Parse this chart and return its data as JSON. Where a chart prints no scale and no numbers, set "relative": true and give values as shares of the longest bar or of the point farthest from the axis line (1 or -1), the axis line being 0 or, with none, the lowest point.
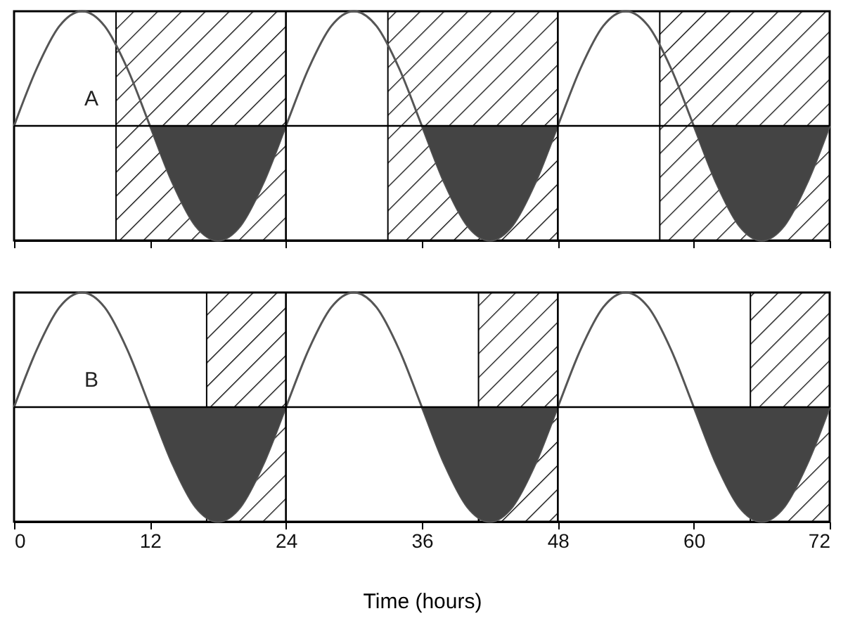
{
  "chart_data": [
    {
      "type": "line",
      "relative": true,
      "annotations": [
        "A"
      ],
      "xlim": [
        0,
        72
      ],
      "xticks": [
        0,
        12,
        24,
        36,
        48,
        60,
        72
      ],
      "tick_labels": false,
      "grid": false,
      "x": [
        0,
        2,
        4,
        6,
        8,
        10,
        12,
        14,
        16,
        18,
        20,
        22,
        24,
        26,
        28,
        30,
        32,
        34,
        36,
        38,
        40,
        42,
        44,
        46,
        48,
        50,
        52,
        54,
        56,
        58,
        60,
        62,
        64,
        66,
        68,
        70,
        72
      ],
      "series": [
        {
          "color": "#555555",
          "values": [
            0,
            0.5,
            0.87,
            1,
            0.87,
            0.5,
            0,
            -0.5,
            -0.87,
            -1,
            -0.87,
            -0.5,
            0,
            0.5,
            0.87,
            1,
            0.87,
            0.5,
            0,
            -0.5,
            -0.87,
            -1,
            -0.87,
            -0.5,
            0,
            0.5,
            0.87,
            1,
            0.87,
            0.5,
            0,
            -0.5,
            -0.87,
            -1,
            -0.87,
            -0.5,
            0
          ]
        },
        {
          "type": "area",
          "color": "#444444",
          "x": [
            12,
            14,
            16,
            18,
            20,
            22,
            24
          ],
          "values": [
            0,
            -0.5,
            -0.87,
            -1,
            -0.87,
            -0.5,
            0
          ]
        },
        {
          "type": "area",
          "color": "#444444",
          "x": [
            36,
            38,
            40,
            42,
            44,
            46,
            48
          ],
          "values": [
            0,
            -0.5,
            -0.87,
            -1,
            -0.87,
            -0.5,
            0
          ]
        },
        {
          "type": "area",
          "color": "#444444",
          "x": [
            60,
            62,
            64,
            66,
            68,
            70,
            72
          ],
          "values": [
            0,
            -0.5,
            -0.87,
            -1,
            -0.87,
            -0.5,
            0
          ]
        }
      ],
      "bands": [
        {
          "axis": "x",
          "from": 9,
          "to": 24,
          "color": "#000000"
        },
        {
          "axis": "x",
          "from": 33,
          "to": 48,
          "color": "#000000"
        },
        {
          "axis": "x",
          "from": 57,
          "to": 72,
          "color": "#000000"
        }
      ],
      "ref_lines": [
        {
          "axis": "y",
          "value": 0
        },
        {
          "axis": "x",
          "value": 24
        },
        {
          "axis": "x",
          "value": 48
        }
      ]
    },
    {
      "type": "line",
      "relative": true,
      "annotations": [
        "B"
      ],
      "xlabel": "Time (hours)",
      "xlim": [
        0,
        72
      ],
      "xticks": [
        0,
        12,
        24,
        36,
        48,
        60,
        72
      ],
      "tick_labels": "x",
      "grid": false,
      "x": [
        0,
        2,
        4,
        6,
        8,
        10,
        12,
        14,
        16,
        18,
        20,
        22,
        24,
        26,
        28,
        30,
        32,
        34,
        36,
        38,
        40,
        42,
        44,
        46,
        48,
        50,
        52,
        54,
        56,
        58,
        60,
        62,
        64,
        66,
        68,
        70,
        72
      ],
      "series": [
        {
          "color": "#555555",
          "values": [
            0,
            0.5,
            0.87,
            1,
            0.87,
            0.5,
            0,
            -0.5,
            -0.87,
            -1,
            -0.87,
            -0.5,
            0,
            0.5,
            0.87,
            1,
            0.87,
            0.5,
            0,
            -0.5,
            -0.87,
            -1,
            -0.87,
            -0.5,
            0,
            0.5,
            0.87,
            1,
            0.87,
            0.5,
            0,
            -0.5,
            -0.87,
            -1,
            -0.87,
            -0.5,
            0
          ]
        },
        {
          "type": "area",
          "color": "#444444",
          "x": [
            12,
            14,
            16,
            18,
            20,
            22,
            24
          ],
          "values": [
            0,
            -0.5,
            -0.87,
            -1,
            -0.87,
            -0.5,
            0
          ]
        },
        {
          "type": "area",
          "color": "#444444",
          "x": [
            36,
            38,
            40,
            42,
            44,
            46,
            48
          ],
          "values": [
            0,
            -0.5,
            -0.87,
            -1,
            -0.87,
            -0.5,
            0
          ]
        },
        {
          "type": "area",
          "color": "#444444",
          "x": [
            60,
            62,
            64,
            66,
            68,
            70,
            72
          ],
          "values": [
            0,
            -0.5,
            -0.87,
            -1,
            -0.87,
            -0.5,
            0
          ]
        }
      ],
      "bands": [
        {
          "axis": "x",
          "from": 17,
          "to": 24,
          "color": "#000000"
        },
        {
          "axis": "x",
          "from": 41,
          "to": 48,
          "color": "#000000"
        },
        {
          "axis": "x",
          "from": 65,
          "to": 72,
          "color": "#000000"
        }
      ],
      "ref_lines": [
        {
          "axis": "y",
          "value": 0
        },
        {
          "axis": "x",
          "value": 24
        },
        {
          "axis": "x",
          "value": 48
        }
      ]
    }
  ]
}
